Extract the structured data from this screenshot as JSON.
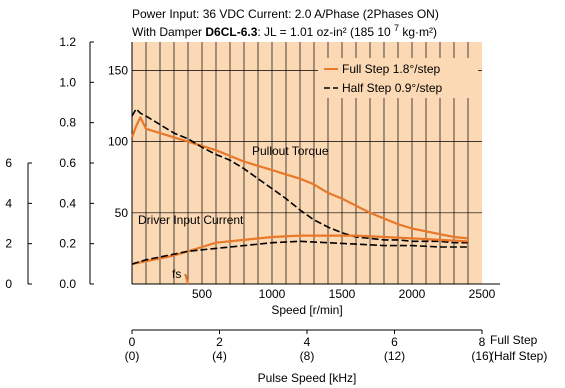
{
  "header": {
    "line1": "Power Input: 36 VDC    Current: 2.0 A/Phase (2Phases ON)",
    "line2_prefix": "With Damper ",
    "line2_model": "D6CL-6.3",
    "line2_suffix": ": JL = 1.01 oz-in² (185    10 ",
    "line2_exp": "7",
    "line2_unit": " kg·m²)"
  },
  "annotations": {
    "pullout_torque": "Pullout Torque",
    "driver_current": "Driver Input Current",
    "fs": "fs"
  },
  "axes": {
    "speed_label": "Speed [r/min]",
    "pulse_label": "Pulse Speed [kHz]",
    "full_step_label": "Full Step",
    "half_step_label": "(Half Step)"
  },
  "colors": {
    "plot_bg": "#fbd9b5",
    "full_step": "#e8782a",
    "half_step": "#000000",
    "grid": "#000000"
  },
  "chart_data": {
    "type": "line",
    "x_axis": {
      "label": "Speed [r/min]",
      "range": [
        0,
        2500
      ],
      "ticks": [
        500,
        1000,
        1500,
        2000,
        2500
      ]
    },
    "y_axis_torque_ozin": {
      "range": [
        0,
        170
      ],
      "ticks": [
        50,
        100,
        150
      ]
    },
    "y_axis_torque_nm": {
      "range": [
        0,
        1.2
      ],
      "ticks": [
        0,
        0.2,
        0.4,
        0.6,
        0.8,
        1.0,
        1.2
      ]
    },
    "y_axis_current": {
      "ticks": [
        0,
        2,
        4,
        6
      ]
    },
    "pulse_axis": {
      "label": "Pulse Speed [kHz]",
      "full_step_ticks": [
        "0",
        "2",
        "4",
        "6",
        "8"
      ],
      "half_step_ticks": [
        "(0)",
        "(4)",
        "(8)",
        "(12)",
        "(16)"
      ]
    },
    "legend": {
      "position": "top-right",
      "entries": [
        "Full Step 1.8°/step",
        "Half Step 0.9°/step"
      ]
    },
    "series": [
      {
        "name": "Full Step 1.8°/step",
        "group": "torque",
        "style": "solid",
        "x": [
          0,
          30,
          60,
          100,
          200,
          300,
          400,
          500,
          600,
          700,
          800,
          900,
          1000,
          1100,
          1200,
          1300,
          1400,
          1500,
          1600,
          1700,
          1800,
          1900,
          2000,
          2100,
          2200,
          2300,
          2400
        ],
        "y": [
          103,
          111,
          117,
          109,
          106,
          103,
          100,
          97,
          94,
          90,
          86,
          83,
          80,
          77,
          74,
          70,
          64,
          60,
          55,
          50,
          46,
          42,
          39,
          37,
          35,
          33,
          32
        ]
      },
      {
        "name": "Half Step 0.9°/step",
        "group": "torque",
        "style": "dashed",
        "x": [
          0,
          30,
          60,
          100,
          200,
          300,
          400,
          500,
          600,
          700,
          800,
          900,
          1000,
          1100,
          1200,
          1300,
          1400,
          1500,
          1600,
          1700,
          1800,
          1900,
          2000,
          2100,
          2200,
          2300,
          2400
        ],
        "y": [
          118,
          123,
          120,
          118,
          112,
          106,
          102,
          96,
          91,
          87,
          81,
          74,
          67,
          60,
          52,
          45,
          40,
          36,
          33,
          32,
          31,
          31,
          30,
          30,
          30,
          29,
          29
        ]
      },
      {
        "name": "Full Step 1.8°/step",
        "group": "current",
        "style": "solid",
        "x": [
          0,
          100,
          200,
          300,
          400,
          500,
          600,
          800,
          1000,
          1200,
          1400,
          1600,
          1800,
          2000,
          2200,
          2400
        ],
        "y": [
          14,
          16,
          18,
          20,
          23,
          26,
          29,
          31,
          33,
          34,
          34,
          34,
          33,
          32,
          31,
          30
        ]
      },
      {
        "name": "Half Step 0.9°/step",
        "group": "current",
        "style": "dashed",
        "x": [
          0,
          100,
          200,
          300,
          400,
          500,
          600,
          800,
          1000,
          1200,
          1400,
          1600,
          1800,
          2000,
          2200,
          2400
        ],
        "y": [
          14,
          17,
          19,
          21,
          23,
          24,
          25,
          27,
          29,
          30,
          29,
          28,
          27,
          27,
          26,
          26
        ]
      },
      {
        "name": "fs",
        "group": "torque",
        "style": "solid",
        "x": [
          380,
          390,
          400
        ],
        "y": [
          7,
          4,
          0
        ]
      }
    ]
  }
}
